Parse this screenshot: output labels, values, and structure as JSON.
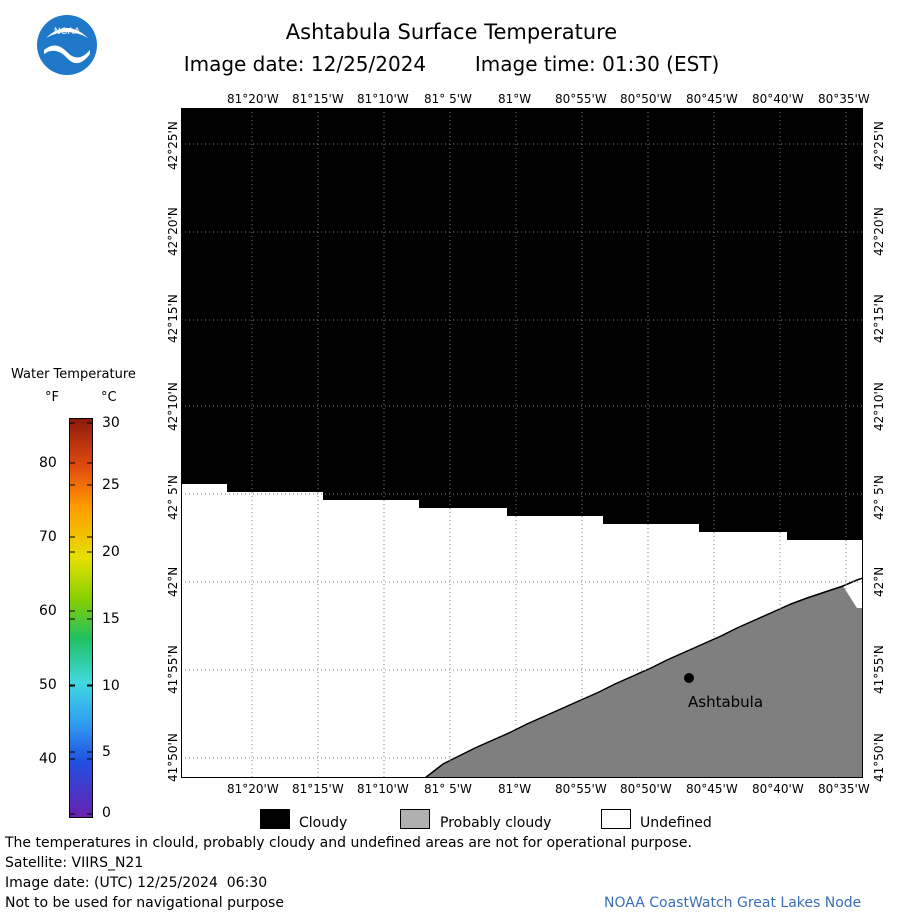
{
  "header": {
    "title": "Ashtabula Surface Temperature",
    "image_date_label": "Image date: 12/25/2024",
    "image_time_label": "Image time: 01:30 (EST)"
  },
  "map": {
    "lon_labels": [
      "81°20'W",
      "81°15'W",
      "81°10'W",
      "81° 5'W",
      "81°W",
      "80°55'W",
      "80°50'W",
      "80°45'W",
      "80°40'W",
      "80°35'W"
    ],
    "lat_labels": [
      "42°25'N",
      "42°20'N",
      "42°15'N",
      "42°10'N",
      "42° 5'N",
      "42°N",
      "41°55'N",
      "41°50'N"
    ],
    "city_label": "Ashtabula",
    "colors": {
      "cloudy": "#000000",
      "probably_cloudy": "#7f7f7f",
      "undefined": "#ffffff"
    }
  },
  "colorbar": {
    "title": "Water Temperature",
    "unit_f": "°F",
    "unit_c": "°C",
    "f_ticks": [
      "80",
      "70",
      "60",
      "50",
      "40"
    ],
    "c_ticks": [
      "30",
      "25",
      "20",
      "15",
      "10",
      "5",
      "0"
    ]
  },
  "legend": {
    "cloudy": "Cloudy",
    "probably_cloudy": "Probably cloudy",
    "undefined": "Undefined"
  },
  "footer": {
    "disclaimer": "The temperatures in clould, probably cloudy and undefined areas are not for operational purpose.",
    "satellite": "Satellite: VIIRS_N21",
    "utc_date": "Image date: (UTC) 12/25/2024  06:30",
    "nav_warning": "Not to be used for navigational purpose",
    "credit": "NOAA CoastWatch Great Lakes Node"
  },
  "logo": {
    "text": "NOAA"
  }
}
